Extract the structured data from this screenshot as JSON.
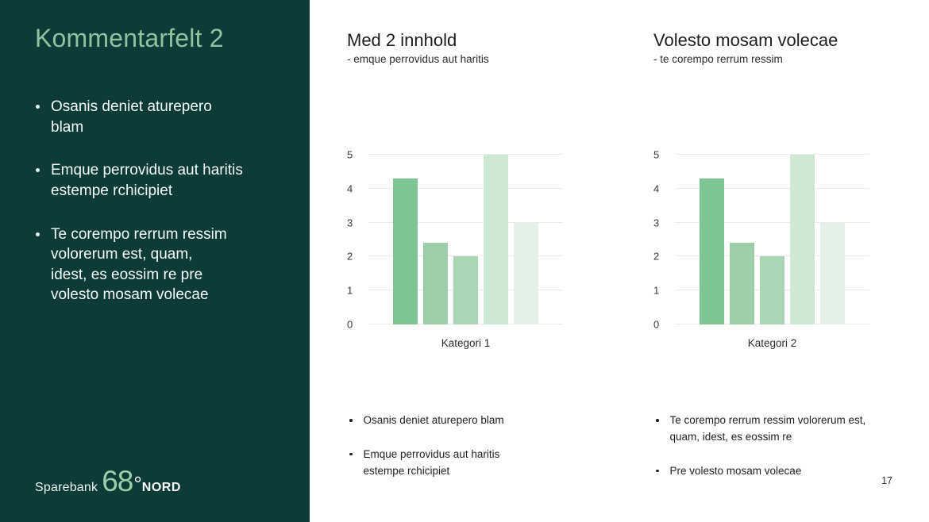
{
  "slide": {
    "page_number": "17"
  },
  "sidebar": {
    "title": "Kommentarfelt 2",
    "bullets": [
      "Osanis deniet aturepero\nblam",
      "Emque perrovidus aut haritis\nestempe rchicipiet",
      "Te corempo rerrum ressim\nvolorerum est, quam,\nidest, es eossim re pre\nvolesto mosam volecae"
    ],
    "logo": {
      "prefix": "Sparebank",
      "number": "68",
      "degree": "°",
      "suffix": "NORD"
    },
    "colors": {
      "background": "#0c3b38",
      "title": "#92c39e",
      "text": "#f7fbf9"
    }
  },
  "columns": [
    {
      "title": "Med 2 innhold",
      "subtitle": "- emque perrovidus aut haritis",
      "bullets": [
        "Osanis deniet aturepero blam",
        "Emque perrovidus aut haritis\nestempe rchicipiet"
      ]
    },
    {
      "title": "Volesto mosam volecae",
      "subtitle": "- te corempo rerrum ressim",
      "bullets": [
        "Te corempo rerrum ressim volorerum est,\nquam, idest, es eossim re",
        "Pre volesto mosam volecae"
      ]
    }
  ],
  "chart_data": [
    {
      "type": "bar",
      "title": "Med 2 innhold",
      "categories": [
        "Kategori 1"
      ],
      "values": [
        4.3,
        2.4,
        2,
        5,
        3
      ],
      "bar_colors": [
        "#7ec494",
        "#9ccfa9",
        "#abd6b5",
        "#cee8d4",
        "#e3f1e7"
      ],
      "xlabel": "",
      "ylabel": "",
      "ylim": [
        0,
        5
      ],
      "yticks": [
        0,
        1,
        2,
        3,
        4,
        5
      ],
      "grid": true,
      "legend": "none",
      "gridline_color": "#eaeaea"
    },
    {
      "type": "bar",
      "title": "Volesto mosam volecae",
      "categories": [
        "Kategori 2"
      ],
      "values": [
        4.3,
        2.4,
        2,
        5,
        3
      ],
      "bar_colors": [
        "#7ec494",
        "#9ccfa9",
        "#abd6b5",
        "#cee8d4",
        "#e3f1e7"
      ],
      "xlabel": "",
      "ylabel": "",
      "ylim": [
        0,
        5
      ],
      "yticks": [
        0,
        1,
        2,
        3,
        4,
        5
      ],
      "grid": true,
      "legend": "none",
      "gridline_color": "#eaeaea"
    }
  ]
}
